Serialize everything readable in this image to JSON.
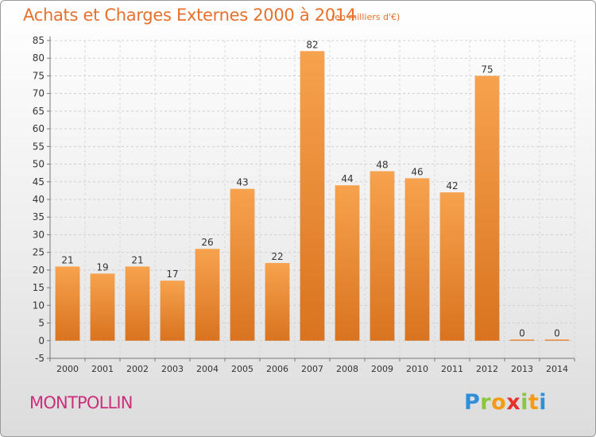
{
  "header": {
    "title": "Achats et Charges Externes 2000 à 2014",
    "unit": "(en milliers d'€)"
  },
  "footer": {
    "commune": "MONTPOLLIN",
    "logo": [
      "P",
      "r",
      "o",
      "x",
      "i",
      "t",
      "i"
    ],
    "logo_colors": [
      "#2f8fd8",
      "#8cc63f",
      "#f39c12",
      "#e8312f",
      "#8cc63f",
      "#f39c12",
      "#2f8fd8"
    ]
  },
  "chart_data": {
    "type": "bar",
    "title": "Achats et Charges Externes 2000 à 2014",
    "subtitle": "(en milliers d'€)",
    "categories": [
      "2000",
      "2001",
      "2002",
      "2003",
      "2004",
      "2005",
      "2006",
      "2007",
      "2008",
      "2009",
      "2010",
      "2011",
      "2012",
      "2013",
      "2014"
    ],
    "values": [
      21,
      19,
      21,
      17,
      26,
      43,
      22,
      82,
      44,
      48,
      46,
      42,
      75,
      0,
      0
    ],
    "data_labels": [
      "21",
      "19",
      "21",
      "17",
      "26",
      "43",
      "22",
      "82",
      "44",
      "48",
      "46",
      "42",
      "75",
      "0",
      "0"
    ],
    "ylim": [
      -5,
      85
    ],
    "yticks": [
      -5,
      0,
      5,
      10,
      15,
      20,
      25,
      30,
      35,
      40,
      45,
      50,
      55,
      60,
      65,
      70,
      75,
      80,
      85
    ],
    "grid": true,
    "legend": "none",
    "bar_color_top": "#f7a24e",
    "bar_color_bottom": "#d9731f",
    "xlabel": "",
    "ylabel": ""
  }
}
